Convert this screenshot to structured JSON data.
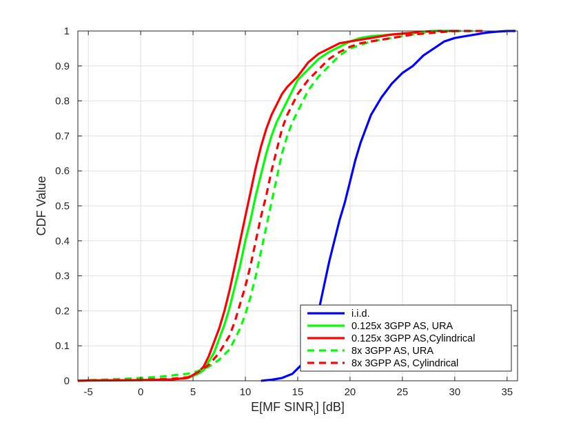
{
  "chart_data": {
    "type": "line",
    "title": "",
    "xlabel": "E[MF SINR",
    "xlabel_sub": "i",
    "xlabel_tail": "] [dB]",
    "ylabel": "CDF Value",
    "xlim": [
      -6,
      36
    ],
    "ylim": [
      0,
      1
    ],
    "xticks": [
      -5,
      0,
      5,
      10,
      15,
      20,
      25,
      30,
      35
    ],
    "yticks": [
      0,
      0.1,
      0.2,
      0.3,
      0.4,
      0.5,
      0.6,
      0.7,
      0.8,
      0.9,
      1
    ],
    "ytick_labels": [
      "0",
      "0.1",
      "0.2",
      "0.3",
      "0.4",
      "0.5",
      "0.6",
      "0.7",
      "0.8",
      "0.9",
      "1"
    ],
    "grid": true,
    "legend_position": "bottom-right",
    "colors": {
      "blue": "#0000ff",
      "green": "#00ff00",
      "red": "#ff0000",
      "grid": "#e0e0e0",
      "axis": "#262626"
    },
    "series": [
      {
        "name": "i.i.d.",
        "color": "#0000ff",
        "dashed": false,
        "points": [
          [
            11.5,
            0
          ],
          [
            12.5,
            0.003
          ],
          [
            13.5,
            0.008
          ],
          [
            14.5,
            0.02
          ],
          [
            15.5,
            0.05
          ],
          [
            16,
            0.1
          ],
          [
            16.5,
            0.15
          ],
          [
            17,
            0.2
          ],
          [
            17.5,
            0.27
          ],
          [
            18,
            0.34
          ],
          [
            18.5,
            0.4
          ],
          [
            19,
            0.46
          ],
          [
            19.5,
            0.51
          ],
          [
            20,
            0.57
          ],
          [
            20.5,
            0.63
          ],
          [
            21,
            0.68
          ],
          [
            21.5,
            0.72
          ],
          [
            22,
            0.76
          ],
          [
            23,
            0.81
          ],
          [
            24,
            0.85
          ],
          [
            25,
            0.88
          ],
          [
            26,
            0.9
          ],
          [
            27,
            0.93
          ],
          [
            28,
            0.95
          ],
          [
            29,
            0.97
          ],
          [
            30,
            0.98
          ],
          [
            31,
            0.985
          ],
          [
            32,
            0.99
          ],
          [
            33,
            0.995
          ],
          [
            34,
            0.998
          ],
          [
            35,
            1.0
          ],
          [
            35.8,
            1.0
          ]
        ]
      },
      {
        "name": "0.125x 3GPP AS, URA",
        "color": "#00ff00",
        "dashed": false,
        "points": [
          [
            -6,
            0.0
          ],
          [
            -5,
            0.001
          ],
          [
            0,
            0.002
          ],
          [
            3,
            0.004
          ],
          [
            4.5,
            0.008
          ],
          [
            5.5,
            0.02
          ],
          [
            6,
            0.03
          ],
          [
            7,
            0.08
          ],
          [
            7.5,
            0.12
          ],
          [
            8,
            0.16
          ],
          [
            8.5,
            0.21
          ],
          [
            9,
            0.27
          ],
          [
            9.5,
            0.33
          ],
          [
            10,
            0.4
          ],
          [
            10.5,
            0.46
          ],
          [
            11,
            0.53
          ],
          [
            11.5,
            0.59
          ],
          [
            12,
            0.65
          ],
          [
            12.5,
            0.7
          ],
          [
            13,
            0.74
          ],
          [
            13.5,
            0.77
          ],
          [
            14,
            0.8
          ],
          [
            14.5,
            0.83
          ],
          [
            15,
            0.86
          ],
          [
            16,
            0.89
          ],
          [
            17,
            0.92
          ],
          [
            18,
            0.94
          ],
          [
            19,
            0.955
          ],
          [
            20,
            0.97
          ],
          [
            21,
            0.98
          ],
          [
            22,
            0.985
          ],
          [
            24,
            0.99
          ],
          [
            26,
            0.995
          ],
          [
            28,
            1.0
          ],
          [
            30,
            1.0
          ]
        ]
      },
      {
        "name": "0.125x 3GPP AS,Cylindrical",
        "color": "#ff0000",
        "dashed": false,
        "points": [
          [
            -6,
            0.0
          ],
          [
            -5,
            0.001
          ],
          [
            0,
            0.002
          ],
          [
            3,
            0.004
          ],
          [
            4.5,
            0.008
          ],
          [
            5.5,
            0.025
          ],
          [
            6,
            0.04
          ],
          [
            6.5,
            0.07
          ],
          [
            7,
            0.11
          ],
          [
            7.5,
            0.15
          ],
          [
            8,
            0.2
          ],
          [
            8.5,
            0.26
          ],
          [
            9,
            0.33
          ],
          [
            9.5,
            0.4
          ],
          [
            10,
            0.47
          ],
          [
            10.5,
            0.54
          ],
          [
            11,
            0.61
          ],
          [
            11.5,
            0.67
          ],
          [
            12,
            0.72
          ],
          [
            12.5,
            0.76
          ],
          [
            13,
            0.79
          ],
          [
            13.5,
            0.82
          ],
          [
            14,
            0.84
          ],
          [
            15,
            0.87
          ],
          [
            16,
            0.91
          ],
          [
            17,
            0.935
          ],
          [
            18,
            0.95
          ],
          [
            19,
            0.965
          ],
          [
            20,
            0.97
          ],
          [
            21,
            0.975
          ],
          [
            22,
            0.98
          ],
          [
            24,
            0.99
          ],
          [
            26,
            0.995
          ],
          [
            28,
            1.0
          ],
          [
            30,
            1.0
          ]
        ]
      },
      {
        "name": "8x 3GPP AS, URA",
        "color": "#00ff00",
        "dashed": true,
        "points": [
          [
            -6,
            0.0
          ],
          [
            -5,
            0.002
          ],
          [
            -2,
            0.005
          ],
          [
            0,
            0.008
          ],
          [
            2,
            0.012
          ],
          [
            3.5,
            0.017
          ],
          [
            4.5,
            0.02
          ],
          [
            5.5,
            0.028
          ],
          [
            6.5,
            0.04
          ],
          [
            7.5,
            0.06
          ],
          [
            8.5,
            0.09
          ],
          [
            9.5,
            0.15
          ],
          [
            10,
            0.19
          ],
          [
            10.5,
            0.24
          ],
          [
            11,
            0.3
          ],
          [
            11.5,
            0.37
          ],
          [
            12,
            0.44
          ],
          [
            12.5,
            0.51
          ],
          [
            13,
            0.58
          ],
          [
            13.5,
            0.65
          ],
          [
            14,
            0.7
          ],
          [
            14.5,
            0.74
          ],
          [
            15,
            0.77
          ],
          [
            15.5,
            0.8
          ],
          [
            16,
            0.83
          ],
          [
            17,
            0.87
          ],
          [
            18,
            0.9
          ],
          [
            19,
            0.93
          ],
          [
            20,
            0.95
          ],
          [
            21,
            0.96
          ],
          [
            22,
            0.97
          ],
          [
            24,
            0.98
          ],
          [
            26,
            0.99
          ],
          [
            28,
            1.0
          ],
          [
            32,
            1.0
          ]
        ]
      },
      {
        "name": "8x 3GPP AS, Cylindrical",
        "color": "#ff0000",
        "dashed": true,
        "points": [
          [
            -6,
            0.0
          ],
          [
            -5,
            0.001
          ],
          [
            0,
            0.003
          ],
          [
            3,
            0.006
          ],
          [
            4.5,
            0.01
          ],
          [
            5.5,
            0.025
          ],
          [
            6.5,
            0.045
          ],
          [
            7.5,
            0.08
          ],
          [
            8.5,
            0.13
          ],
          [
            9,
            0.17
          ],
          [
            9.5,
            0.22
          ],
          [
            10,
            0.27
          ],
          [
            10.5,
            0.33
          ],
          [
            11,
            0.4
          ],
          [
            11.5,
            0.47
          ],
          [
            12,
            0.53
          ],
          [
            12.5,
            0.6
          ],
          [
            13,
            0.66
          ],
          [
            13.5,
            0.72
          ],
          [
            14,
            0.76
          ],
          [
            14.5,
            0.79
          ],
          [
            15,
            0.82
          ],
          [
            16,
            0.86
          ],
          [
            17,
            0.89
          ],
          [
            18,
            0.92
          ],
          [
            19,
            0.94
          ],
          [
            20,
            0.955
          ],
          [
            21,
            0.965
          ],
          [
            22,
            0.97
          ],
          [
            24,
            0.98
          ],
          [
            26,
            0.99
          ],
          [
            28,
            0.995
          ],
          [
            30,
            1.0
          ],
          [
            33,
            1.0
          ]
        ]
      }
    ]
  }
}
